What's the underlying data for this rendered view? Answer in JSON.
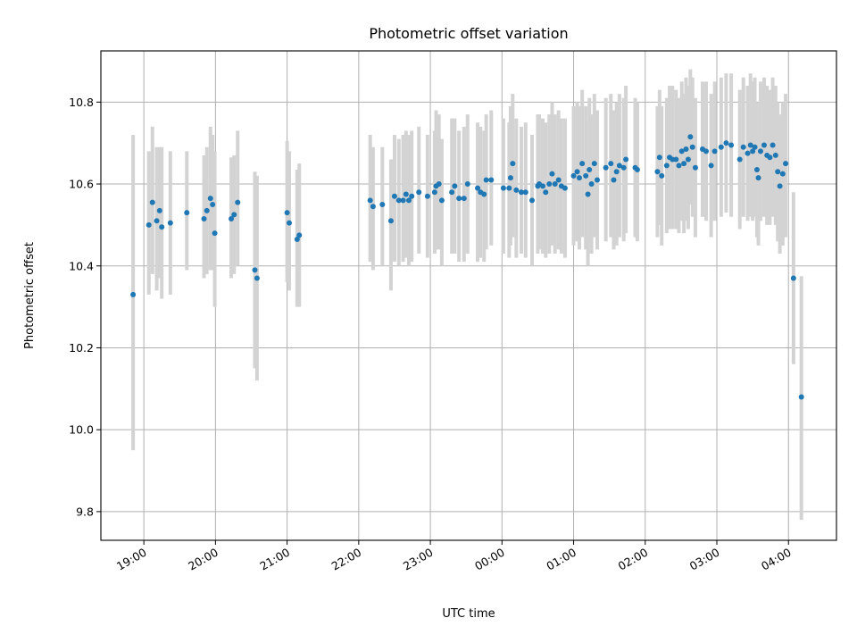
{
  "chart_data": {
    "type": "scatter",
    "title": "Photometric offset variation",
    "xlabel": "UTC time",
    "ylabel": "Photometric offset",
    "x_unit": "hours UTC (values >= 24 are after midnight)",
    "xlim": [
      18.4,
      28.67
    ],
    "ylim": [
      9.73,
      10.925
    ],
    "x_ticks": [
      19,
      20,
      21,
      22,
      23,
      24,
      25,
      26,
      27,
      28
    ],
    "x_tick_labels": [
      "19:00",
      "20:00",
      "21:00",
      "22:00",
      "23:00",
      "00:00",
      "01:00",
      "02:00",
      "03:00",
      "04:00"
    ],
    "y_ticks": [
      9.8,
      10.0,
      10.2,
      10.4,
      10.6,
      10.8
    ],
    "y_tick_labels": [
      "9.8",
      "10.0",
      "10.2",
      "10.4",
      "10.6",
      "10.8"
    ],
    "grid": true,
    "marker_color": "#1f77b4",
    "errorbar_color": "#d3d3d3",
    "points": [
      [
        18.85,
        10.33,
        9.95,
        10.72
      ],
      [
        19.07,
        10.5,
        10.33,
        10.68
      ],
      [
        19.12,
        10.555,
        10.38,
        10.74
      ],
      [
        19.18,
        10.51,
        10.34,
        10.69
      ],
      [
        19.22,
        10.535,
        10.37,
        10.69
      ],
      [
        19.25,
        10.495,
        10.32,
        10.69
      ],
      [
        19.37,
        10.505,
        10.33,
        10.68
      ],
      [
        19.6,
        10.53,
        10.39,
        10.68
      ],
      [
        19.84,
        10.515,
        10.37,
        10.67
      ],
      [
        19.88,
        10.535,
        10.38,
        10.69
      ],
      [
        19.93,
        10.565,
        10.39,
        10.74
      ],
      [
        19.96,
        10.55,
        10.39,
        10.72
      ],
      [
        19.99,
        10.48,
        10.3,
        10.68
      ],
      [
        20.22,
        10.515,
        10.37,
        10.665
      ],
      [
        20.26,
        10.525,
        10.38,
        10.67
      ],
      [
        20.31,
        10.555,
        10.4,
        10.73
      ],
      [
        20.55,
        10.39,
        10.15,
        10.63
      ],
      [
        20.58,
        10.37,
        10.12,
        10.62
      ],
      [
        21.0,
        10.53,
        10.36,
        10.705
      ],
      [
        21.03,
        10.505,
        10.34,
        10.68
      ],
      [
        21.14,
        10.465,
        10.3,
        10.635
      ],
      [
        21.17,
        10.475,
        10.3,
        10.65
      ],
      [
        22.16,
        10.56,
        10.41,
        10.72
      ],
      [
        22.2,
        10.545,
        10.39,
        10.69
      ],
      [
        22.33,
        10.55,
        10.4,
        10.69
      ],
      [
        22.45,
        10.51,
        10.34,
        10.66
      ],
      [
        22.5,
        10.57,
        10.41,
        10.72
      ],
      [
        22.56,
        10.56,
        10.4,
        10.71
      ],
      [
        22.62,
        10.56,
        10.41,
        10.72
      ],
      [
        22.66,
        10.575,
        10.42,
        10.73
      ],
      [
        22.7,
        10.56,
        10.4,
        10.72
      ],
      [
        22.74,
        10.57,
        10.41,
        10.73
      ],
      [
        22.84,
        10.58,
        10.43,
        10.74
      ],
      [
        22.96,
        10.57,
        10.42,
        10.72
      ],
      [
        23.06,
        10.58,
        10.43,
        10.73
      ],
      [
        23.08,
        10.595,
        10.44,
        10.78
      ],
      [
        23.12,
        10.6,
        10.44,
        10.77
      ],
      [
        23.16,
        10.56,
        10.4,
        10.71
      ],
      [
        23.3,
        10.58,
        10.43,
        10.76
      ],
      [
        23.34,
        10.595,
        10.43,
        10.76
      ],
      [
        23.4,
        10.565,
        10.41,
        10.73
      ],
      [
        23.47,
        10.565,
        10.41,
        10.74
      ],
      [
        23.52,
        10.6,
        10.43,
        10.77
      ],
      [
        23.66,
        10.59,
        10.41,
        10.75
      ],
      [
        23.7,
        10.58,
        10.42,
        10.74
      ],
      [
        23.75,
        10.575,
        10.41,
        10.73
      ],
      [
        23.78,
        10.61,
        10.44,
        10.77
      ],
      [
        23.85,
        10.61,
        10.45,
        10.78
      ],
      [
        24.02,
        10.59,
        10.43,
        10.76
      ],
      [
        24.1,
        10.59,
        10.42,
        10.75
      ],
      [
        24.12,
        10.615,
        10.45,
        10.79
      ],
      [
        24.15,
        10.65,
        10.47,
        10.82
      ],
      [
        24.2,
        10.585,
        10.42,
        10.76
      ],
      [
        24.27,
        10.58,
        10.43,
        10.74
      ],
      [
        24.33,
        10.58,
        10.42,
        10.75
      ],
      [
        24.42,
        10.56,
        10.4,
        10.72
      ],
      [
        24.5,
        10.595,
        10.43,
        10.77
      ],
      [
        24.52,
        10.6,
        10.44,
        10.77
      ],
      [
        24.57,
        10.595,
        10.43,
        10.76
      ],
      [
        24.61,
        10.58,
        10.42,
        10.75
      ],
      [
        24.66,
        10.6,
        10.43,
        10.77
      ],
      [
        24.7,
        10.625,
        10.45,
        10.8
      ],
      [
        24.74,
        10.6,
        10.43,
        10.77
      ],
      [
        24.79,
        10.61,
        10.44,
        10.78
      ],
      [
        24.83,
        10.595,
        10.43,
        10.76
      ],
      [
        24.88,
        10.59,
        10.42,
        10.76
      ],
      [
        25.0,
        10.62,
        10.45,
        10.79
      ],
      [
        25.05,
        10.63,
        10.46,
        10.8
      ],
      [
        25.08,
        10.615,
        10.44,
        10.79
      ],
      [
        25.12,
        10.65,
        10.47,
        10.83
      ],
      [
        25.17,
        10.62,
        10.44,
        10.79
      ],
      [
        25.2,
        10.575,
        10.4,
        10.75
      ],
      [
        25.22,
        10.635,
        10.46,
        10.81
      ],
      [
        25.25,
        10.6,
        10.43,
        10.77
      ],
      [
        25.29,
        10.65,
        10.47,
        10.82
      ],
      [
        25.33,
        10.61,
        10.44,
        10.78
      ],
      [
        25.45,
        10.64,
        10.46,
        10.81
      ],
      [
        25.52,
        10.65,
        10.47,
        10.82
      ],
      [
        25.56,
        10.61,
        10.44,
        10.78
      ],
      [
        25.6,
        10.63,
        10.45,
        10.8
      ],
      [
        25.64,
        10.645,
        10.47,
        10.82
      ],
      [
        25.7,
        10.64,
        10.46,
        10.81
      ],
      [
        25.73,
        10.66,
        10.48,
        10.84
      ],
      [
        25.86,
        10.64,
        10.47,
        10.81
      ],
      [
        25.89,
        10.635,
        10.46,
        10.8
      ],
      [
        26.17,
        10.63,
        10.47,
        10.79
      ],
      [
        26.2,
        10.665,
        10.5,
        10.83
      ],
      [
        26.23,
        10.62,
        10.45,
        10.79
      ],
      [
        26.3,
        10.645,
        10.48,
        10.81
      ],
      [
        26.34,
        10.665,
        10.49,
        10.84
      ],
      [
        26.38,
        10.66,
        10.49,
        10.84
      ],
      [
        26.43,
        10.66,
        10.49,
        10.83
      ],
      [
        26.47,
        10.645,
        10.48,
        10.81
      ],
      [
        26.51,
        10.68,
        10.51,
        10.85
      ],
      [
        26.54,
        10.65,
        10.48,
        10.82
      ],
      [
        26.57,
        10.685,
        10.51,
        10.86
      ],
      [
        26.6,
        10.66,
        10.49,
        10.84
      ],
      [
        26.63,
        10.715,
        10.55,
        10.88
      ],
      [
        26.66,
        10.69,
        10.52,
        10.86
      ],
      [
        26.7,
        10.64,
        10.47,
        10.81
      ],
      [
        26.8,
        10.685,
        10.52,
        10.85
      ],
      [
        26.85,
        10.68,
        10.51,
        10.85
      ],
      [
        26.92,
        10.645,
        10.47,
        10.82
      ],
      [
        26.97,
        10.68,
        10.51,
        10.85
      ],
      [
        27.06,
        10.69,
        10.52,
        10.86
      ],
      [
        27.13,
        10.7,
        10.53,
        10.87
      ],
      [
        27.2,
        10.695,
        10.52,
        10.87
      ],
      [
        27.32,
        10.66,
        10.49,
        10.83
      ],
      [
        27.37,
        10.69,
        10.52,
        10.86
      ],
      [
        27.43,
        10.675,
        10.51,
        10.84
      ],
      [
        27.47,
        10.695,
        10.52,
        10.87
      ],
      [
        27.5,
        10.68,
        10.51,
        10.85
      ],
      [
        27.53,
        10.69,
        10.52,
        10.86
      ],
      [
        27.56,
        10.635,
        10.47,
        10.8
      ],
      [
        27.58,
        10.615,
        10.45,
        10.78
      ],
      [
        27.61,
        10.68,
        10.51,
        10.85
      ],
      [
        27.66,
        10.695,
        10.52,
        10.86
      ],
      [
        27.7,
        10.67,
        10.5,
        10.84
      ],
      [
        27.74,
        10.665,
        10.5,
        10.83
      ],
      [
        27.78,
        10.695,
        10.52,
        10.86
      ],
      [
        27.82,
        10.67,
        10.5,
        10.84
      ],
      [
        27.85,
        10.63,
        10.46,
        10.8
      ],
      [
        27.88,
        10.595,
        10.43,
        10.77
      ],
      [
        27.92,
        10.625,
        10.45,
        10.8
      ],
      [
        27.96,
        10.65,
        10.47,
        10.82
      ],
      [
        28.07,
        10.37,
        10.16,
        10.58
      ],
      [
        28.18,
        10.08,
        9.78,
        10.375
      ]
    ]
  }
}
